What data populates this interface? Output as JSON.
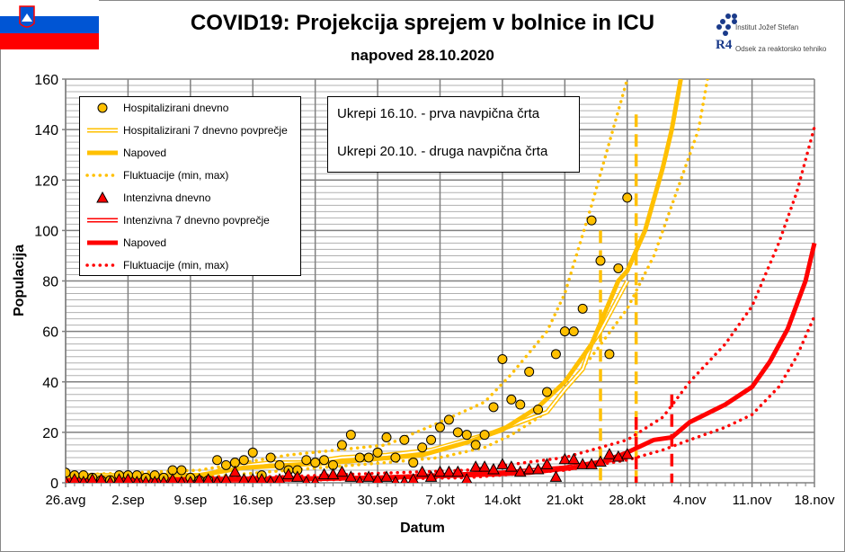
{
  "header": {
    "title": "COVID19: Projekcija sprejem v bolnice in ICU",
    "subtitle": "napoved 28.10.2020",
    "logo_ijs": "Institut Jožef Stefan",
    "logo_r4": "Odsek za reaktorsko tehniko",
    "logo_r4_mark": "R4",
    "flag": "Slovenia"
  },
  "notes": [
    "Ukrepi 16.10. - prva navpična črta",
    "Ukrepi 20.10. - druga navpična črta"
  ],
  "colors": {
    "hospital": "#FFC000",
    "icu": "#FF0000",
    "grid": "#808080"
  },
  "chart_data": {
    "type": "line",
    "title": "COVID19: Projekcija sprejem v bolnice in ICU",
    "xlabel": "Datum",
    "ylabel": "Populacija",
    "ylim": [
      0,
      160
    ],
    "yticks": [
      0,
      20,
      40,
      60,
      80,
      100,
      120,
      140,
      160
    ],
    "xticks": [
      "26.avg",
      "2.sep",
      "9.sep",
      "16.sep",
      "23.sep",
      "30.sep",
      "7.okt",
      "14.okt",
      "21.okt",
      "28.okt",
      "4.nov",
      "11.nov",
      "18.nov"
    ],
    "xlim": [
      "2020-08-26",
      "2020-11-18"
    ],
    "grid": true,
    "legend_position": "top-left",
    "daily_dates_range": [
      "2020-08-26",
      "2020-10-28"
    ],
    "series": [
      {
        "name": "Hospitalizirani dnevno",
        "style": "marker-circle",
        "color": "#FFC000",
        "values": [
          4,
          3,
          3,
          2,
          1,
          1,
          3,
          3,
          3,
          2,
          3,
          2,
          5,
          5,
          2,
          1,
          1,
          9,
          7,
          8,
          9,
          12,
          3,
          10,
          7,
          5,
          5,
          9,
          8,
          9,
          7,
          15,
          19,
          10,
          10,
          12,
          18,
          10,
          17,
          8,
          14,
          17,
          22,
          25,
          20,
          19,
          15,
          19,
          30,
          49,
          33,
          31,
          44,
          29,
          36,
          51,
          60,
          60,
          69,
          104,
          88,
          51,
          85,
          113
        ]
      },
      {
        "name": "Hospitalizirani 7 dnevno povprečje",
        "style": "double-line",
        "color": "#FFC000",
        "points": [
          [
            "08-26",
            3
          ],
          [
            "09-05",
            3
          ],
          [
            "09-11",
            3
          ],
          [
            "09-13",
            6
          ],
          [
            "09-18",
            8
          ],
          [
            "09-22",
            8
          ],
          [
            "09-26",
            10
          ],
          [
            "10-01",
            11
          ],
          [
            "10-06",
            13
          ],
          [
            "10-09",
            16
          ],
          [
            "10-13",
            20
          ],
          [
            "10-16",
            24
          ],
          [
            "10-19",
            28
          ],
          [
            "10-21",
            37
          ],
          [
            "10-23",
            45
          ],
          [
            "10-24",
            55
          ],
          [
            "10-25",
            60
          ],
          [
            "10-28",
            80
          ]
        ]
      },
      {
        "name": "Napoved",
        "style": "thick-line",
        "color": "#FFC000",
        "points": [
          [
            "08-26",
            2
          ],
          [
            "09-10",
            3
          ],
          [
            "09-15",
            6
          ],
          [
            "09-25",
            8
          ],
          [
            "10-05",
            11
          ],
          [
            "10-10",
            16
          ],
          [
            "10-14",
            21
          ],
          [
            "10-18",
            30
          ],
          [
            "10-21",
            40
          ],
          [
            "10-24",
            55
          ],
          [
            "10-27",
            80
          ],
          [
            "10-28",
            84
          ],
          [
            "10-30",
            100
          ],
          [
            "11-01",
            125
          ],
          [
            "11-02",
            140
          ],
          [
            "11-03",
            160
          ]
        ]
      },
      {
        "name": "Fluktuacije (min, max)",
        "style": "dotted-line",
        "color": "#FFC000",
        "points": [
          [
            "08-26",
            3
          ],
          [
            "09-10",
            5
          ],
          [
            "09-20",
            11
          ],
          [
            "10-01",
            15
          ],
          [
            "10-07",
            24
          ],
          [
            "10-12",
            32
          ],
          [
            "10-15",
            43
          ],
          [
            "10-19",
            60
          ],
          [
            "10-21",
            75
          ],
          [
            "10-24",
            110
          ],
          [
            "10-26",
            135
          ],
          [
            "10-28",
            160
          ]
        ]
      },
      {
        "name": "Fluktuacije (min, max)",
        "style": "dotted-line",
        "color": "#FFC000",
        "points": [
          [
            "08-26",
            1
          ],
          [
            "09-10",
            2
          ],
          [
            "09-20",
            5
          ],
          [
            "10-01",
            8
          ],
          [
            "10-07",
            10
          ],
          [
            "10-12",
            14
          ],
          [
            "10-15",
            19
          ],
          [
            "10-19",
            28
          ],
          [
            "10-21",
            37
          ],
          [
            "10-24",
            50
          ],
          [
            "10-28",
            69
          ],
          [
            "10-31",
            90
          ],
          [
            "11-03",
            120
          ],
          [
            "11-05",
            140
          ],
          [
            "11-06",
            160
          ]
        ]
      },
      {
        "name": "Intenzivna dnevno",
        "style": "marker-triangle",
        "color": "#FF0000",
        "values": [
          0,
          1,
          0,
          1,
          1,
          0,
          1,
          1,
          0,
          0,
          0,
          0,
          1,
          0,
          0,
          1,
          1,
          0,
          1,
          4,
          1,
          1,
          1,
          0,
          1,
          3,
          2,
          0,
          0,
          3,
          3,
          4,
          2,
          0,
          2,
          1,
          2,
          0,
          0,
          1,
          4,
          2,
          4,
          4,
          4,
          1,
          6,
          6,
          5,
          7,
          6,
          4,
          5,
          5,
          7,
          2,
          9,
          9,
          7,
          7,
          8,
          11,
          10,
          11
        ]
      },
      {
        "name": "Intenzivna 7 dnevno povprečje",
        "style": "double-line",
        "color": "#FF0000",
        "points": [
          [
            "08-26",
            1
          ],
          [
            "09-15",
            1
          ],
          [
            "09-30",
            2
          ],
          [
            "10-07",
            3
          ],
          [
            "10-14",
            4
          ],
          [
            "10-21",
            6
          ],
          [
            "10-28",
            10
          ]
        ]
      },
      {
        "name": "Napoved",
        "style": "thick-line",
        "color": "#FF0000",
        "points": [
          [
            "08-26",
            1
          ],
          [
            "09-15",
            1.5
          ],
          [
            "10-01",
            2
          ],
          [
            "10-10",
            3
          ],
          [
            "10-17",
            4
          ],
          [
            "10-22",
            6
          ],
          [
            "10-25",
            8
          ],
          [
            "10-28",
            12
          ],
          [
            "10-31",
            17
          ],
          [
            "11-02",
            18
          ],
          [
            "11-04",
            24
          ],
          [
            "11-08",
            31
          ],
          [
            "11-11",
            38
          ],
          [
            "11-13",
            48
          ],
          [
            "11-15",
            61
          ],
          [
            "11-17",
            80
          ],
          [
            "11-18",
            95
          ]
        ]
      },
      {
        "name": "Fluktuacije (min, max)",
        "style": "dotted-line",
        "color": "#FF0000",
        "points": [
          [
            "08-26",
            1.5
          ],
          [
            "09-20",
            2.5
          ],
          [
            "10-10",
            5
          ],
          [
            "10-21",
            10
          ],
          [
            "10-28",
            17
          ],
          [
            "11-01",
            26
          ],
          [
            "11-04",
            40
          ],
          [
            "11-08",
            55
          ],
          [
            "11-11",
            70
          ],
          [
            "11-14",
            95
          ],
          [
            "11-16",
            115
          ],
          [
            "11-18",
            141
          ]
        ]
      },
      {
        "name": "Fluktuacije (min, max)",
        "style": "dotted-line",
        "color": "#FF0000",
        "points": [
          [
            "08-26",
            0.5
          ],
          [
            "09-20",
            1
          ],
          [
            "10-10",
            2
          ],
          [
            "10-21",
            5
          ],
          [
            "10-28",
            9
          ],
          [
            "11-01",
            13
          ],
          [
            "11-04",
            17
          ],
          [
            "11-08",
            22
          ],
          [
            "11-11",
            27
          ],
          [
            "11-14",
            38
          ],
          [
            "11-16",
            50
          ],
          [
            "11-18",
            66
          ]
        ]
      }
    ],
    "vertical_markers": [
      {
        "date": "10-25",
        "color": "#FFC000",
        "top": 100
      },
      {
        "date": "10-29",
        "color": "#FFC000",
        "top": 146
      },
      {
        "date": "10-29",
        "color": "#FF0000",
        "top": 26
      },
      {
        "date": "11-02",
        "color": "#FF0000",
        "top": 35
      }
    ]
  },
  "legend": [
    {
      "label": "Hospitalizirani dnevno",
      "style": "marker-circle",
      "color": "#FFC000"
    },
    {
      "label": "Hospitalizirani 7 dnevno povprečje",
      "style": "double-line",
      "color": "#FFC000"
    },
    {
      "label": "Napoved",
      "style": "thick-line",
      "color": "#FFC000"
    },
    {
      "label": "Fluktuacije (min, max)",
      "style": "dotted-line",
      "color": "#FFC000"
    },
    {
      "label": "Intenzivna dnevno",
      "style": "marker-triangle",
      "color": "#FF0000"
    },
    {
      "label": "Intenzivna 7 dnevno povprečje",
      "style": "double-line",
      "color": "#FF0000"
    },
    {
      "label": "Napoved",
      "style": "thick-line",
      "color": "#FF0000"
    },
    {
      "label": "Fluktuacije (min, max)",
      "style": "dotted-line",
      "color": "#FF0000"
    }
  ]
}
